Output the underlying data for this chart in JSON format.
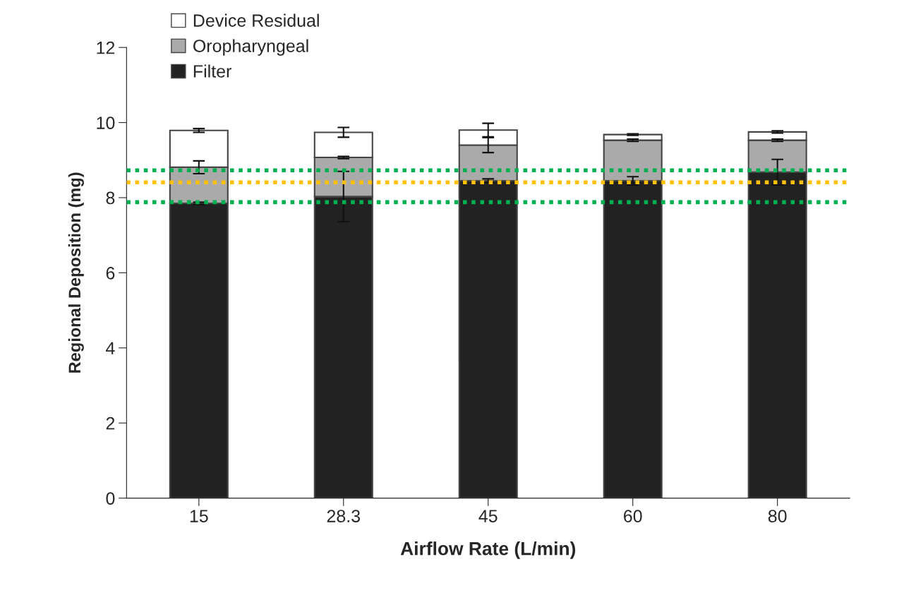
{
  "chart_data": {
    "type": "bar",
    "stacked": true,
    "xlabel": "Airflow Rate (L/min)",
    "ylabel": "Regional Deposition (mg)",
    "categories": [
      "15",
      "28.3",
      "45",
      "60",
      "80"
    ],
    "series": [
      {
        "name": "Filter",
        "color": "#222222",
        "values": [
          7.85,
          8.03,
          8.45,
          8.45,
          8.68
        ],
        "errors": [
          0.03,
          0.67,
          0.05,
          0.11,
          0.34
        ]
      },
      {
        "name": "Oropharyngeal",
        "color": "#aaaaaa",
        "values": [
          0.96,
          1.04,
          0.95,
          1.08,
          0.85
        ],
        "errors": [
          0.17,
          0.03,
          0.2,
          0.03,
          0.03
        ]
      },
      {
        "name": "Device Residual",
        "color": "#ffffff",
        "values": [
          0.98,
          0.67,
          0.4,
          0.15,
          0.22
        ],
        "errors": [
          0.05,
          0.13,
          0.18,
          0.02,
          0.03
        ]
      }
    ],
    "ylim": [
      0,
      12
    ],
    "yticks": [
      0,
      2,
      4,
      6,
      8,
      10,
      12
    ],
    "grid": false,
    "legend": "top left",
    "ref_lines": [
      {
        "axis": "y",
        "value": 8.73,
        "color": "#00b050",
        "line_style": "dotted"
      },
      {
        "axis": "y",
        "value": 8.41,
        "color": "#ffc000",
        "line_style": "dotted"
      },
      {
        "axis": "y",
        "value": 7.88,
        "color": "#00b050",
        "line_style": "dotted"
      }
    ]
  }
}
